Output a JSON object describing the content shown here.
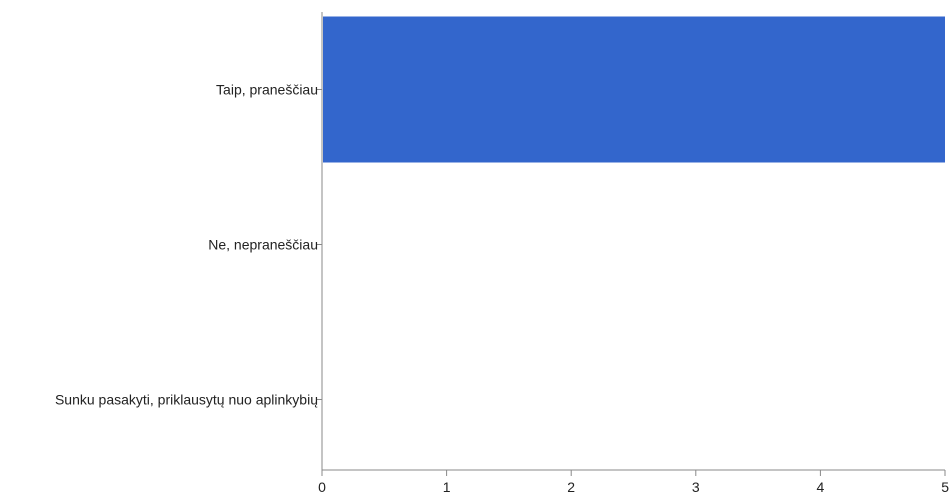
{
  "chart_data": {
    "type": "bar",
    "orientation": "horizontal",
    "categories": [
      "Taip, praneščiau",
      "Ne, nepraneščiau",
      "Sunku pasakyti, priklausytų nuo aplinkybių"
    ],
    "values": [
      5,
      0,
      0
    ],
    "xlim": [
      0,
      5
    ],
    "xticks": [
      "0",
      "1",
      "2",
      "3",
      "4",
      "5"
    ],
    "grid": false,
    "legend": "none",
    "bar_color": "#3366cc"
  }
}
